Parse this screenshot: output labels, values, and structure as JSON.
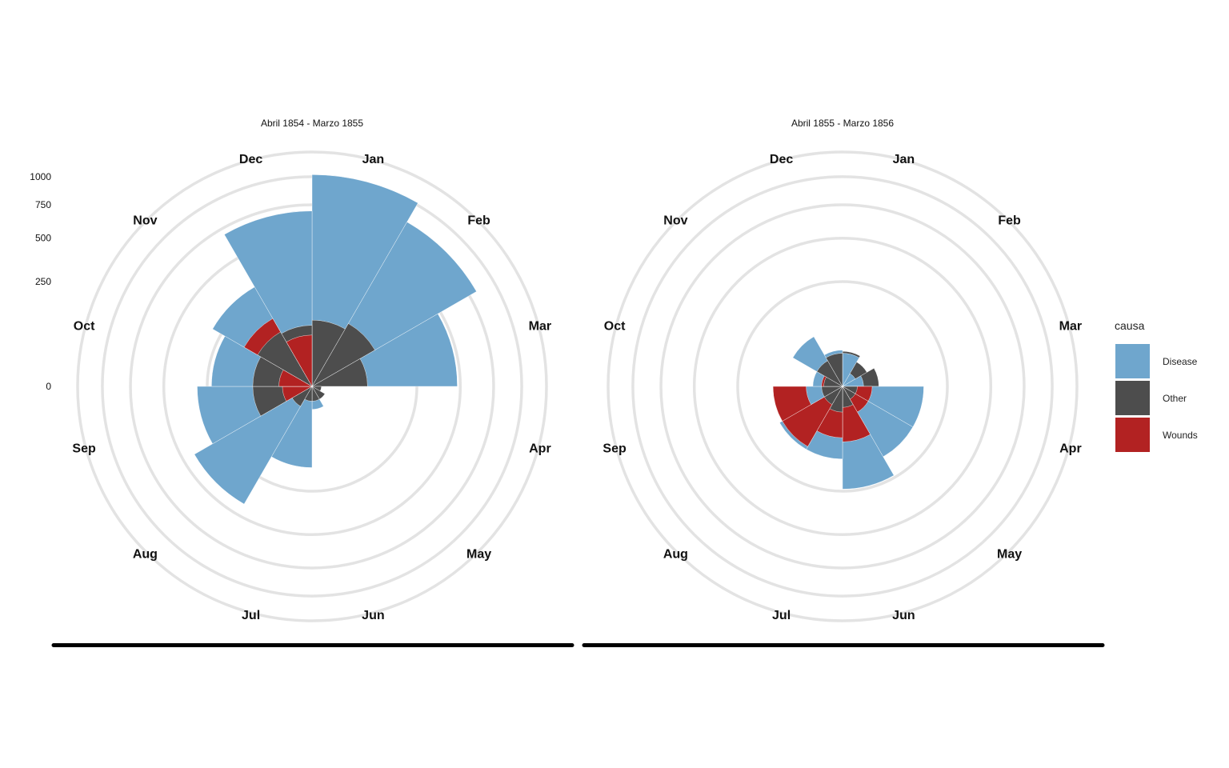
{
  "chart_data": {
    "type": "polar-area",
    "scale": "sqrt",
    "months": [
      "Jan",
      "Feb",
      "Mar",
      "Apr",
      "May",
      "Jun",
      "Jul",
      "Aug",
      "Sep",
      "Oct",
      "Nov",
      "Dec"
    ],
    "radial_ticks": [
      0,
      250,
      500,
      750,
      1000
    ],
    "radial_grid": [
      250,
      500,
      750,
      1000,
      1250
    ],
    "max_value": 1250,
    "colors": {
      "Disease": "#6fa6cd",
      "Other": "#4d4d4d",
      "Wounds": "#b22222"
    },
    "legend": {
      "title": "causa",
      "position": "right",
      "items": [
        {
          "name": "Disease",
          "color": "#6fa6cd"
        },
        {
          "name": "Other",
          "color": "#4d4d4d"
        },
        {
          "name": "Wounds",
          "color": "#b22222"
        }
      ]
    },
    "panels": [
      {
        "title": "Abril 1854 - Marzo 1855",
        "series": [
          {
            "name": "Disease",
            "values": [
              1020,
              820,
              480,
              0,
              0,
              12,
              150,
              420,
              300,
              230,
              300,
              700
            ]
          },
          {
            "name": "Other",
            "values": [
              100,
              120,
              70,
              2,
              5,
              5,
              5,
              12,
              80,
              80,
              90,
              85
            ]
          },
          {
            "name": "Wounds",
            "values": [
              0,
              0,
              0,
              0,
              0,
              0,
              0,
              0,
              20,
              25,
              140,
              60
            ]
          }
        ]
      },
      {
        "title": "Abril 1855 - Marzo 1856",
        "series": [
          {
            "name": "Disease",
            "values": [
              25,
              5,
              10,
              150,
              150,
              240,
              120,
              120,
              30,
              20,
              75,
              30
            ]
          },
          {
            "name": "Other",
            "values": [
              28,
              18,
              30,
              5,
              5,
              10,
              15,
              10,
              10,
              8,
              20,
              25
            ]
          },
          {
            "name": "Wounds",
            "values": [
              0,
              0,
              0,
              20,
              20,
              70,
              60,
              110,
              110,
              10,
              0,
              0
            ]
          }
        ]
      }
    ]
  }
}
